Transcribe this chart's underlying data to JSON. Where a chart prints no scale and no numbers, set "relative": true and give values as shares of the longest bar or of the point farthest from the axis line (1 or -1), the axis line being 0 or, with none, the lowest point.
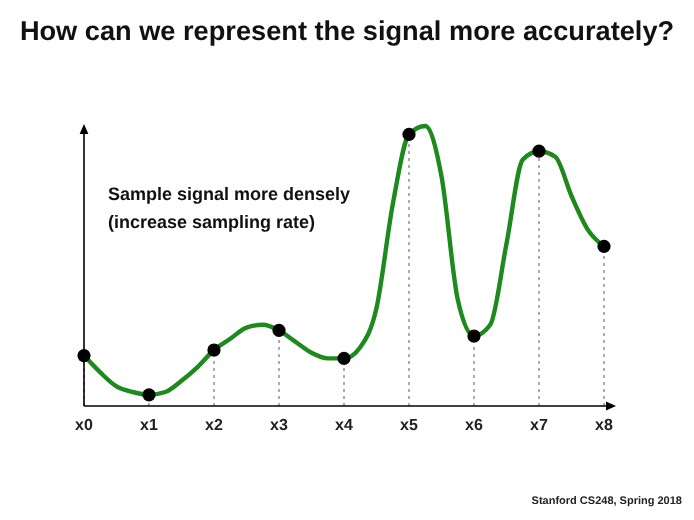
{
  "chart_data": {
    "type": "line",
    "title": "How can we represent the signal more accurately?",
    "relative": true,
    "tick_labels": "x",
    "categories": [
      "x0",
      null,
      null,
      null,
      "x1",
      null,
      null,
      null,
      "x2",
      null,
      null,
      null,
      "x3",
      null,
      null,
      null,
      "x4",
      null,
      null,
      null,
      "x5",
      null,
      null,
      null,
      "x6",
      null,
      null,
      null,
      "x7",
      null,
      null,
      null,
      "x8"
    ],
    "series": [
      {
        "type": "line",
        "color": "#1e8a1e",
        "marker": "none",
        "line_style": "solid",
        "values": [
          0.18,
          0.12,
          0.07,
          0.05,
          0.04,
          0.05,
          0.09,
          0.14,
          0.2,
          0.24,
          0.28,
          0.29,
          0.27,
          0.23,
          0.19,
          0.17,
          0.17,
          0.21,
          0.35,
          0.72,
          0.97,
          1.0,
          0.82,
          0.38,
          0.25,
          0.29,
          0.58,
          0.88,
          0.91,
          0.89,
          0.75,
          0.63,
          0.57
        ]
      },
      {
        "type": "lollipop",
        "color": "#000000",
        "marker": "circle",
        "line_style": "dotted",
        "values": [
          0.18,
          null,
          null,
          null,
          0.04,
          null,
          null,
          null,
          0.2,
          null,
          null,
          null,
          0.27,
          null,
          null,
          null,
          0.17,
          null,
          null,
          null,
          0.97,
          null,
          null,
          null,
          0.25,
          null,
          null,
          null,
          0.91,
          null,
          null,
          null,
          0.57
        ]
      }
    ],
    "annotations": [
      "Sample signal more densely\n(increase sampling rate)",
      "Stanford CS248, Spring 2018"
    ]
  }
}
